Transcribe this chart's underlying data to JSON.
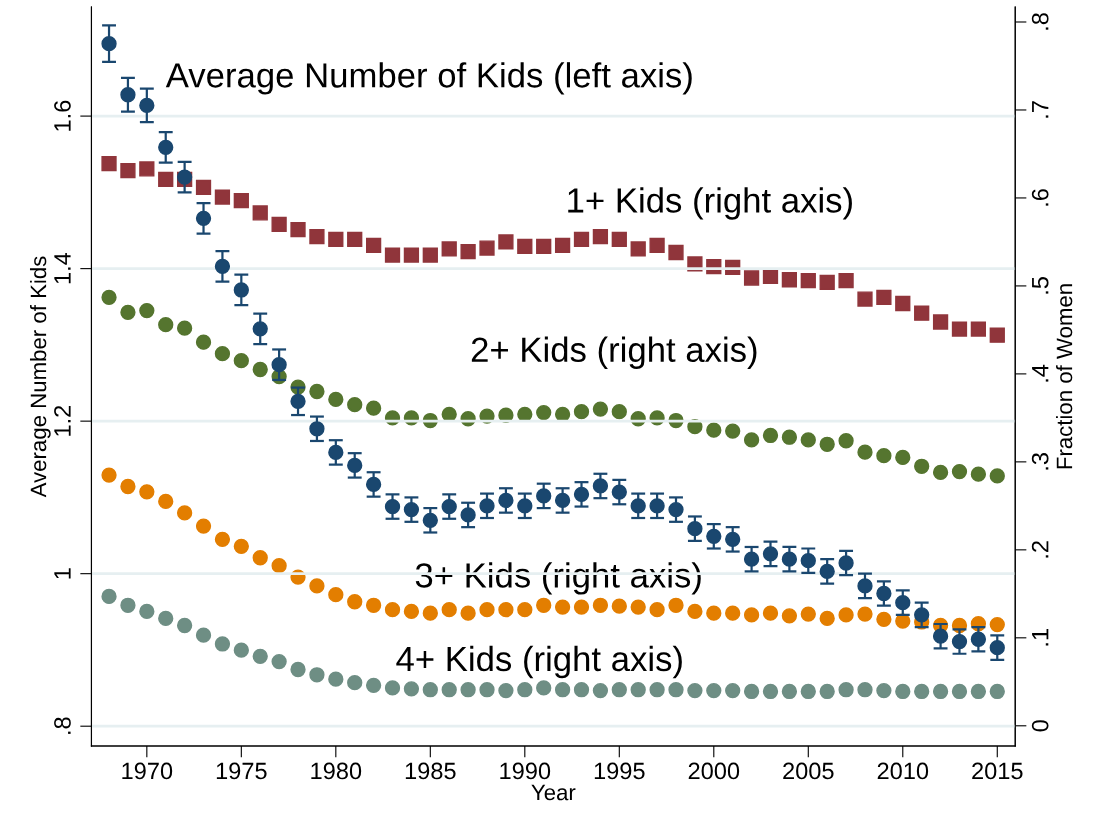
{
  "chart_data": {
    "type": "scatter",
    "xlabel": "Year",
    "ylabel": "Average Number of Kids",
    "y2label": "Fraction of Women",
    "x": [
      1968,
      1969,
      1970,
      1971,
      1972,
      1973,
      1974,
      1975,
      1976,
      1977,
      1978,
      1979,
      1980,
      1981,
      1982,
      1983,
      1984,
      1985,
      1986,
      1987,
      1988,
      1989,
      1990,
      1991,
      1992,
      1993,
      1994,
      1995,
      1996,
      1997,
      1998,
      1999,
      2000,
      2001,
      2002,
      2003,
      2004,
      2005,
      2006,
      2007,
      2008,
      2009,
      2010,
      2011,
      2012,
      2013,
      2014,
      2015
    ],
    "xlim": [
      1967.07,
      2015.95
    ],
    "xticks": [
      1970,
      1975,
      1980,
      1985,
      1990,
      1995,
      2000,
      2005,
      2010,
      2015
    ],
    "ylim": [
      0.774,
      1.743
    ],
    "yticks": [
      {
        "value": 0.8,
        "label": ".8"
      },
      1,
      1.2,
      1.4,
      1.6
    ],
    "y2lim": [
      -0.023,
      0.817
    ],
    "y2ticks": [
      0,
      {
        "value": 0.1,
        "label": ".1"
      },
      {
        "value": 0.2,
        "label": ".2"
      },
      {
        "value": 0.3,
        "label": ".3"
      },
      {
        "value": 0.4,
        "label": ".4"
      },
      {
        "value": 0.5,
        "label": ".5"
      },
      {
        "value": 0.6,
        "label": ".6"
      },
      {
        "value": 0.7,
        "label": ".7"
      },
      {
        "value": 0.8,
        "label": ".8"
      }
    ],
    "grid": "y",
    "series": [
      {
        "name": "Average Number of Kids (left axis)",
        "color": "#1a476f",
        "marker": "circle",
        "values": [
          1.695,
          1.628,
          1.614,
          1.559,
          1.52,
          1.466,
          1.403,
          1.372,
          1.321,
          1.274,
          1.226,
          1.19,
          1.159,
          1.142,
          1.117,
          1.088,
          1.084,
          1.07,
          1.088,
          1.077,
          1.089,
          1.096,
          1.089,
          1.102,
          1.096,
          1.104,
          1.115,
          1.107,
          1.089,
          1.089,
          1.084,
          1.059,
          1.049,
          1.045,
          1.019,
          1.026,
          1.019,
          1.017,
          1.003,
          1.014,
          0.984,
          0.974,
          0.962,
          0.946,
          0.918,
          0.911,
          0.914,
          0.903
        ],
        "errors": [
          0.024,
          0.022,
          0.022,
          0.02,
          0.02,
          0.02,
          0.02,
          0.02,
          0.02,
          0.02,
          0.018,
          0.016,
          0.016,
          0.016,
          0.016,
          0.016,
          0.016,
          0.016,
          0.016,
          0.016,
          0.016,
          0.016,
          0.016,
          0.016,
          0.016,
          0.016,
          0.016,
          0.016,
          0.016,
          0.016,
          0.016,
          0.016,
          0.016,
          0.016,
          0.016,
          0.016,
          0.016,
          0.016,
          0.016,
          0.016,
          0.016,
          0.016,
          0.016,
          0.016,
          0.016,
          0.016,
          0.016,
          0.016
        ]
      },
      {
        "name": "1+ Kids (right axis)",
        "color": "#90353b",
        "marker": "square",
        "axis": "y2",
        "values": [
          0.639,
          0.631,
          0.633,
          0.621,
          0.621,
          0.612,
          0.601,
          0.597,
          0.583,
          0.57,
          0.564,
          0.556,
          0.553,
          0.553,
          0.546,
          0.535,
          0.535,
          0.535,
          0.542,
          0.539,
          0.543,
          0.55,
          0.545,
          0.545,
          0.546,
          0.553,
          0.556,
          0.553,
          0.542,
          0.546,
          0.538,
          0.525,
          0.522,
          0.521,
          0.509,
          0.511,
          0.507,
          0.506,
          0.504,
          0.506,
          0.485,
          0.487,
          0.48,
          0.469,
          0.459,
          0.451,
          0.451,
          0.444
        ]
      },
      {
        "name": "2+ Kids (right axis)",
        "color": "#55752f",
        "marker": "circle",
        "axis": "y2",
        "values": [
          0.487,
          0.47,
          0.472,
          0.456,
          0.452,
          0.436,
          0.423,
          0.415,
          0.405,
          0.397,
          0.385,
          0.38,
          0.371,
          0.365,
          0.361,
          0.35,
          0.35,
          0.347,
          0.354,
          0.349,
          0.352,
          0.353,
          0.354,
          0.356,
          0.354,
          0.357,
          0.36,
          0.357,
          0.349,
          0.35,
          0.347,
          0.34,
          0.336,
          0.335,
          0.325,
          0.33,
          0.328,
          0.325,
          0.32,
          0.324,
          0.311,
          0.307,
          0.305,
          0.295,
          0.288,
          0.289,
          0.286,
          0.284
        ]
      },
      {
        "name": "3+ Kids (right axis)",
        "color": "#e37e00",
        "marker": "circle",
        "axis": "y2",
        "values": [
          0.285,
          0.272,
          0.266,
          0.255,
          0.242,
          0.227,
          0.212,
          0.204,
          0.191,
          0.182,
          0.169,
          0.159,
          0.149,
          0.141,
          0.137,
          0.132,
          0.13,
          0.128,
          0.132,
          0.128,
          0.132,
          0.132,
          0.132,
          0.137,
          0.135,
          0.135,
          0.137,
          0.136,
          0.135,
          0.132,
          0.137,
          0.13,
          0.128,
          0.128,
          0.126,
          0.128,
          0.125,
          0.127,
          0.122,
          0.126,
          0.127,
          0.121,
          0.119,
          0.118,
          0.114,
          0.114,
          0.116,
          0.115
        ]
      },
      {
        "name": "4+ Kids (right axis)",
        "color": "#6e8e84",
        "marker": "circle",
        "axis": "y2",
        "values": [
          0.147,
          0.137,
          0.13,
          0.122,
          0.114,
          0.103,
          0.093,
          0.086,
          0.079,
          0.073,
          0.064,
          0.058,
          0.053,
          0.049,
          0.046,
          0.043,
          0.042,
          0.041,
          0.041,
          0.041,
          0.041,
          0.04,
          0.041,
          0.043,
          0.041,
          0.041,
          0.04,
          0.041,
          0.041,
          0.041,
          0.041,
          0.04,
          0.04,
          0.04,
          0.039,
          0.039,
          0.039,
          0.039,
          0.039,
          0.041,
          0.041,
          0.04,
          0.039,
          0.039,
          0.039,
          0.039,
          0.039,
          0.039
        ]
      }
    ]
  }
}
